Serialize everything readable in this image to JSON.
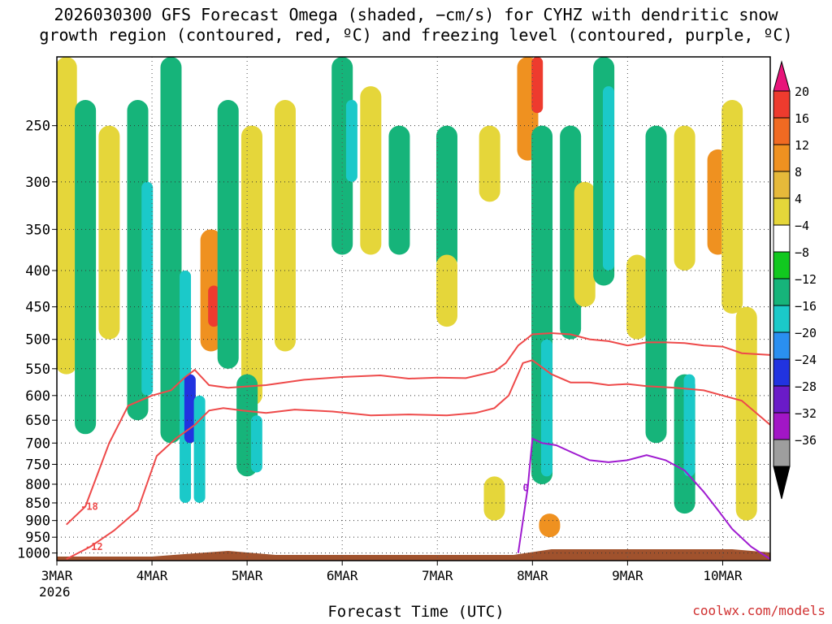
{
  "title": {
    "line1": "2026030300 GFS Forecast Omega (shaded, −cm/s) for CYHZ with dendritic snow",
    "line2": "growth region (contoured, red, ºC) and freezing level (contoured, purple, ºC)"
  },
  "credit": "coolwx.com/models",
  "chart_data": {
    "type": "heatmap",
    "title": "2026030300 GFS Forecast Omega (shaded, −cm/s) for CYHZ with dendritic snow growth region (contoured, red, ºC) and freezing level (contoured, purple, ºC)",
    "xlabel": "Forecast Time (UTC)",
    "ylabel": "",
    "x_ticks": [
      "3MAR",
      "4MAR",
      "5MAR",
      "6MAR",
      "7MAR",
      "8MAR",
      "9MAR",
      "10MAR"
    ],
    "x_first_year": "2026",
    "x_range_days": [
      0,
      7.5
    ],
    "y_ticks": [
      250,
      300,
      350,
      400,
      450,
      500,
      550,
      600,
      650,
      700,
      750,
      800,
      850,
      900,
      950,
      1000
    ],
    "y_range_hpa": [
      200,
      1025
    ],
    "y_scale": "log-pressure",
    "colorbar": {
      "labels": [
        "20",
        "16",
        "12",
        "8",
        "4",
        "−4",
        "−8",
        "−12",
        "−16",
        "−20",
        "−24",
        "−28",
        "−32",
        "−36"
      ],
      "colors": [
        "#e8157a",
        "#ee3b2e",
        "#f06a22",
        "#ef9120",
        "#e6b93a",
        "#e5d63a",
        "#ffffff",
        "#11c81f",
        "#16b47a",
        "#1bc9c9",
        "#2a8ff0",
        "#2133e0",
        "#6a1bc8",
        "#a216c6",
        "#9e9e9e",
        "#000000"
      ]
    },
    "omega_regions": [
      {
        "day": 0.1,
        "p_top": 200,
        "p_bot": 560,
        "value": 6
      },
      {
        "day": 0.3,
        "p_top": 230,
        "p_bot": 680,
        "value": -8
      },
      {
        "day": 0.55,
        "p_top": 250,
        "p_bot": 500,
        "value": 6
      },
      {
        "day": 0.85,
        "p_top": 230,
        "p_bot": 650,
        "value": -8
      },
      {
        "day": 0.95,
        "p_top": 300,
        "p_bot": 600,
        "value": -12
      },
      {
        "day": 1.2,
        "p_top": 200,
        "p_bot": 700,
        "value": -8
      },
      {
        "day": 1.35,
        "p_top": 400,
        "p_bot": 850,
        "value": -12
      },
      {
        "day": 1.4,
        "p_top": 560,
        "p_bot": 700,
        "value": -20
      },
      {
        "day": 1.5,
        "p_top": 600,
        "p_bot": 850,
        "value": -14
      },
      {
        "day": 1.62,
        "p_top": 350,
        "p_bot": 520,
        "value": 9
      },
      {
        "day": 1.65,
        "p_top": 420,
        "p_bot": 480,
        "value": 18
      },
      {
        "day": 1.8,
        "p_top": 230,
        "p_bot": 550,
        "value": -8
      },
      {
        "day": 2.05,
        "p_top": 250,
        "p_bot": 620,
        "value": 6
      },
      {
        "day": 2.0,
        "p_top": 560,
        "p_bot": 780,
        "value": -8
      },
      {
        "day": 2.1,
        "p_top": 640,
        "p_bot": 770,
        "value": -12
      },
      {
        "day": 2.4,
        "p_top": 230,
        "p_bot": 520,
        "value": 5
      },
      {
        "day": 3.0,
        "p_top": 200,
        "p_bot": 380,
        "value": -8
      },
      {
        "day": 3.1,
        "p_top": 230,
        "p_bot": 300,
        "value": -12
      },
      {
        "day": 3.3,
        "p_top": 220,
        "p_bot": 380,
        "value": 5
      },
      {
        "day": 3.6,
        "p_top": 250,
        "p_bot": 380,
        "value": -8
      },
      {
        "day": 4.1,
        "p_top": 250,
        "p_bot": 400,
        "value": -8
      },
      {
        "day": 4.1,
        "p_top": 380,
        "p_bot": 480,
        "value": 5
      },
      {
        "day": 4.55,
        "p_top": 250,
        "p_bot": 320,
        "value": 5
      },
      {
        "day": 4.6,
        "p_top": 780,
        "p_bot": 900,
        "value": 6
      },
      {
        "day": 4.95,
        "p_top": 200,
        "p_bot": 280,
        "value": 8
      },
      {
        "day": 5.05,
        "p_top": 200,
        "p_bot": 240,
        "value": 16
      },
      {
        "day": 5.1,
        "p_top": 250,
        "p_bot": 800,
        "value": -8
      },
      {
        "day": 5.15,
        "p_top": 500,
        "p_bot": 780,
        "value": -13
      },
      {
        "day": 5.18,
        "p_top": 880,
        "p_bot": 950,
        "value": 8
      },
      {
        "day": 5.4,
        "p_top": 250,
        "p_bot": 500,
        "value": -8
      },
      {
        "day": 5.55,
        "p_top": 300,
        "p_bot": 450,
        "value": 5
      },
      {
        "day": 5.75,
        "p_top": 200,
        "p_bot": 420,
        "value": -8
      },
      {
        "day": 5.8,
        "p_top": 220,
        "p_bot": 400,
        "value": -12
      },
      {
        "day": 6.1,
        "p_top": 380,
        "p_bot": 500,
        "value": 6
      },
      {
        "day": 6.3,
        "p_top": 250,
        "p_bot": 700,
        "value": -8
      },
      {
        "day": 6.6,
        "p_top": 250,
        "p_bot": 400,
        "value": 5
      },
      {
        "day": 6.6,
        "p_top": 560,
        "p_bot": 880,
        "value": -8
      },
      {
        "day": 6.65,
        "p_top": 560,
        "p_bot": 780,
        "value": -12
      },
      {
        "day": 6.95,
        "p_top": 270,
        "p_bot": 380,
        "value": 8
      },
      {
        "day": 7.1,
        "p_top": 230,
        "p_bot": 460,
        "value": 5
      },
      {
        "day": 7.25,
        "p_top": 450,
        "p_bot": 900,
        "value": 5
      }
    ],
    "series": [
      {
        "name": "-18",
        "color": "#ee4a4a",
        "x": [
          0.1,
          0.3,
          0.55,
          0.75,
          1.0,
          1.2,
          1.35,
          1.45,
          1.6,
          1.8,
          2.2,
          2.6,
          3.0,
          3.4,
          3.7,
          4.0,
          4.3,
          4.6,
          4.72,
          4.85,
          5.0,
          5.2,
          5.4,
          5.6,
          5.8,
          6.0,
          6.2,
          6.4,
          6.6,
          6.8,
          7.0,
          7.2,
          7.5
        ],
        "y": [
          912,
          860,
          700,
          620,
          600,
          590,
          565,
          552,
          580,
          585,
          580,
          570,
          565,
          562,
          568,
          566,
          567,
          555,
          540,
          510,
          492,
          490,
          492,
          500,
          503,
          510,
          505,
          505,
          506,
          510,
          512,
          523,
          526
        ]
      },
      {
        "name": "-12",
        "color": "#ee4a4a",
        "x": [
          0.1,
          0.35,
          0.6,
          0.85,
          1.05,
          1.25,
          1.45,
          1.6,
          1.75,
          1.95,
          2.2,
          2.5,
          2.9,
          3.3,
          3.7,
          4.1,
          4.4,
          4.6,
          4.75,
          4.9,
          5.0,
          5.2,
          5.4,
          5.6,
          5.8,
          6.0,
          6.2,
          6.5,
          6.8,
          7.0,
          7.2,
          7.5
        ],
        "y": [
          1020,
          980,
          930,
          870,
          730,
          690,
          660,
          630,
          625,
          630,
          635,
          628,
          632,
          640,
          638,
          640,
          635,
          625,
          600,
          540,
          535,
          560,
          575,
          575,
          580,
          578,
          582,
          585,
          590,
          600,
          610,
          660
        ]
      },
      {
        "name": "0",
        "color": "#9f1bd0",
        "x": [
          4.85,
          4.95,
          5.0,
          5.1,
          5.25,
          5.4,
          5.6,
          5.8,
          6.0,
          6.2,
          6.4,
          6.6,
          6.8,
          6.95,
          7.1,
          7.3,
          7.5
        ],
        "y": [
          1000,
          810,
          690,
          700,
          705,
          720,
          740,
          745,
          740,
          728,
          740,
          765,
          820,
          870,
          925,
          980,
          1020
        ]
      }
    ],
    "grid": true,
    "legend": "colorbar-right"
  }
}
